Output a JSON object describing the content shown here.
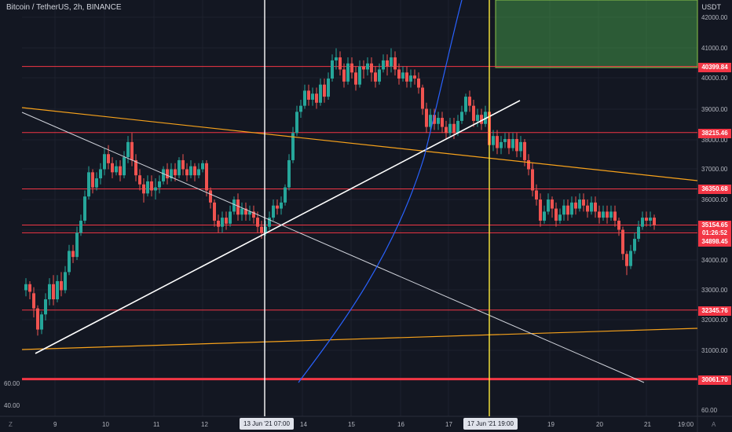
{
  "title": "Bitcoin / TetherUS, 2h, BINANCE",
  "currency": "USDT",
  "price_axis": {
    "ticks": [
      "42000.00",
      "41000.00",
      "40000.00",
      "39000.00",
      "38000.00",
      "37000.00",
      "36000.00",
      "35000.00",
      "34000.00",
      "33000.00",
      "32000.00",
      "31000.00"
    ],
    "levels": [
      {
        "value": "40399.84"
      },
      {
        "value": "38215.46"
      },
      {
        "value": "36350.68"
      },
      {
        "value": "35154.65",
        "countdown": "01:26:52"
      },
      {
        "value": "34898.45"
      },
      {
        "value": "32345.76"
      },
      {
        "value": "30061.70"
      }
    ]
  },
  "indicator_axis": {
    "ticks_right": [
      "60.00"
    ],
    "ticks_left": [
      "60.00",
      "40.00"
    ]
  },
  "time_axis": {
    "ticks": [
      "9",
      "10",
      "11",
      "12",
      "14",
      "15",
      "16",
      "17",
      "19",
      "20",
      "21",
      "19:00"
    ],
    "vertical_markers": [
      {
        "label": "13 Jun '21  07:00",
        "color": "#ffffff"
      },
      {
        "label": "17 Jun '21  19:00",
        "color": "#ffeb3b"
      }
    ]
  },
  "corner_labels": {
    "left": "Z",
    "right": "A"
  },
  "colors": {
    "background": "#131722",
    "up": "#26a69a",
    "down": "#ef5350",
    "level_line": "#f23645",
    "trend_orange": "#f7a21b",
    "curve_blue": "#2962ff",
    "target_zone": "#4caf50"
  }
}
